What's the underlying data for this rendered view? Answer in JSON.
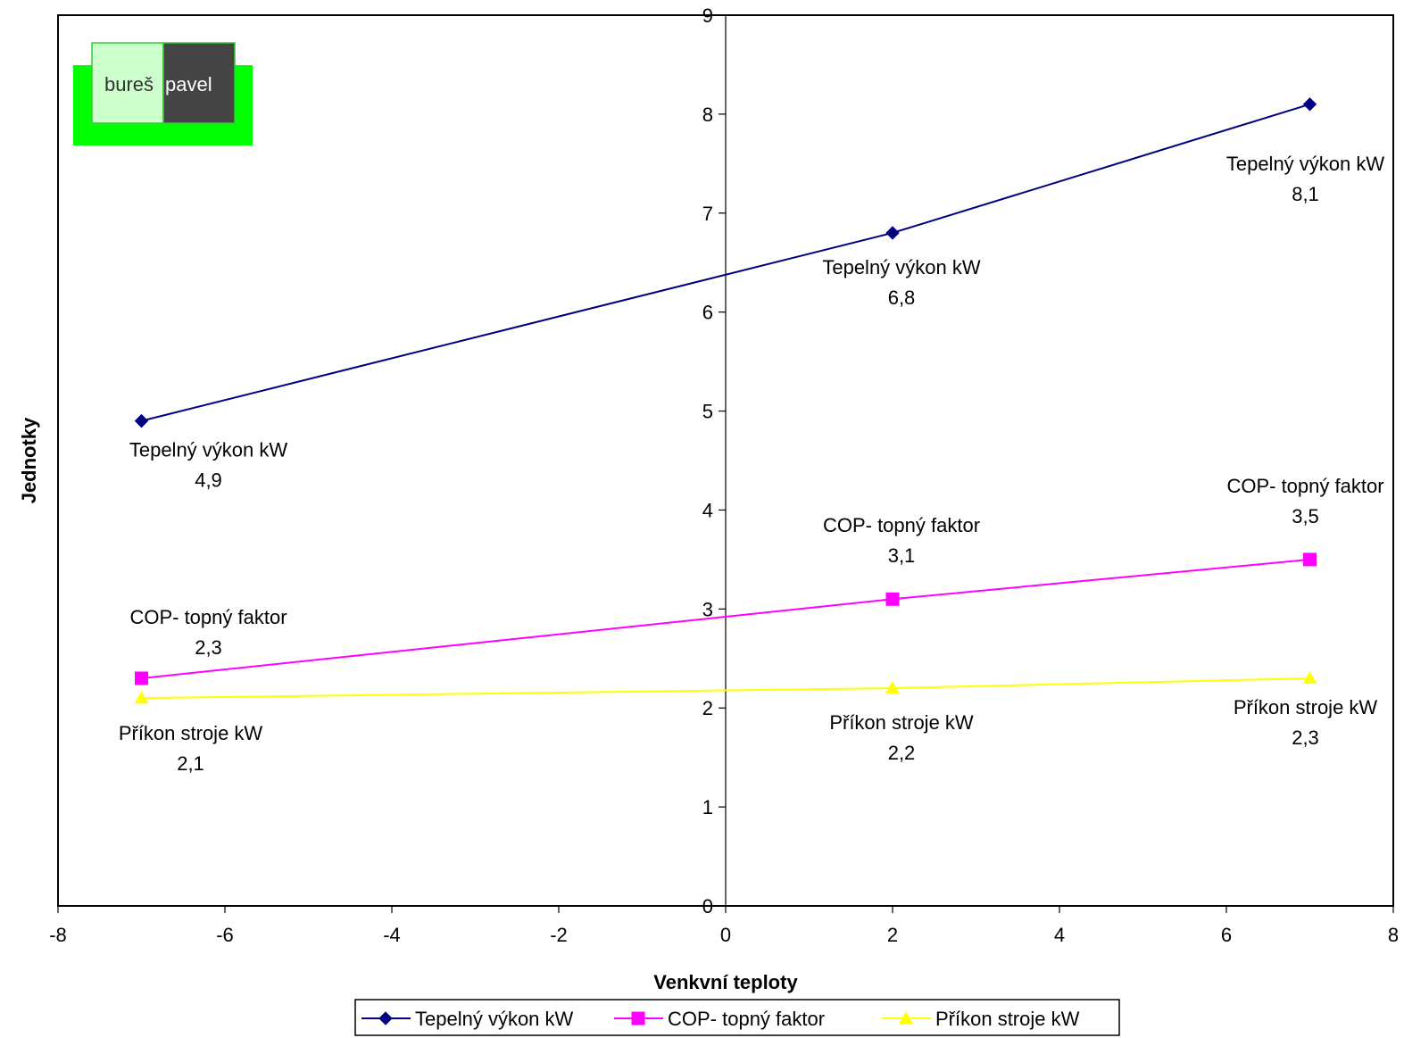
{
  "logo": {
    "word1": "bureš",
    "word2": "pavel"
  },
  "chart_data": {
    "type": "scatter",
    "xlabel": "Venkvní teploty",
    "ylabel": "Jednotky",
    "xlim": [
      -8,
      8
    ],
    "ylim": [
      0,
      9
    ],
    "x_ticks": [
      -8,
      -6,
      -4,
      -2,
      0,
      2,
      4,
      6,
      8
    ],
    "y_ticks": [
      0,
      1,
      2,
      3,
      4,
      5,
      6,
      7,
      8,
      9
    ],
    "grid": false,
    "legend_position": "bottom",
    "series": [
      {
        "name": "Tepelný výkon kW",
        "color": "#000080",
        "marker": "diamond",
        "x": [
          -7,
          2,
          7
        ],
        "y": [
          4.9,
          6.8,
          8.1
        ],
        "labels": [
          "4,9",
          "6,8",
          "8,1"
        ]
      },
      {
        "name": "COP- topný faktor",
        "color": "#FF00FF",
        "marker": "square",
        "x": [
          -7,
          2,
          7
        ],
        "y": [
          2.3,
          3.1,
          3.5
        ],
        "labels": [
          "2,3",
          "3,1",
          "3,5"
        ]
      },
      {
        "name": "Příkon stroje kW",
        "color": "#FFFF00",
        "marker": "triangle",
        "x": [
          -7,
          2,
          7
        ],
        "y": [
          2.1,
          2.2,
          2.3
        ],
        "labels": [
          "2,1",
          "2,2",
          "2,3"
        ]
      }
    ]
  }
}
